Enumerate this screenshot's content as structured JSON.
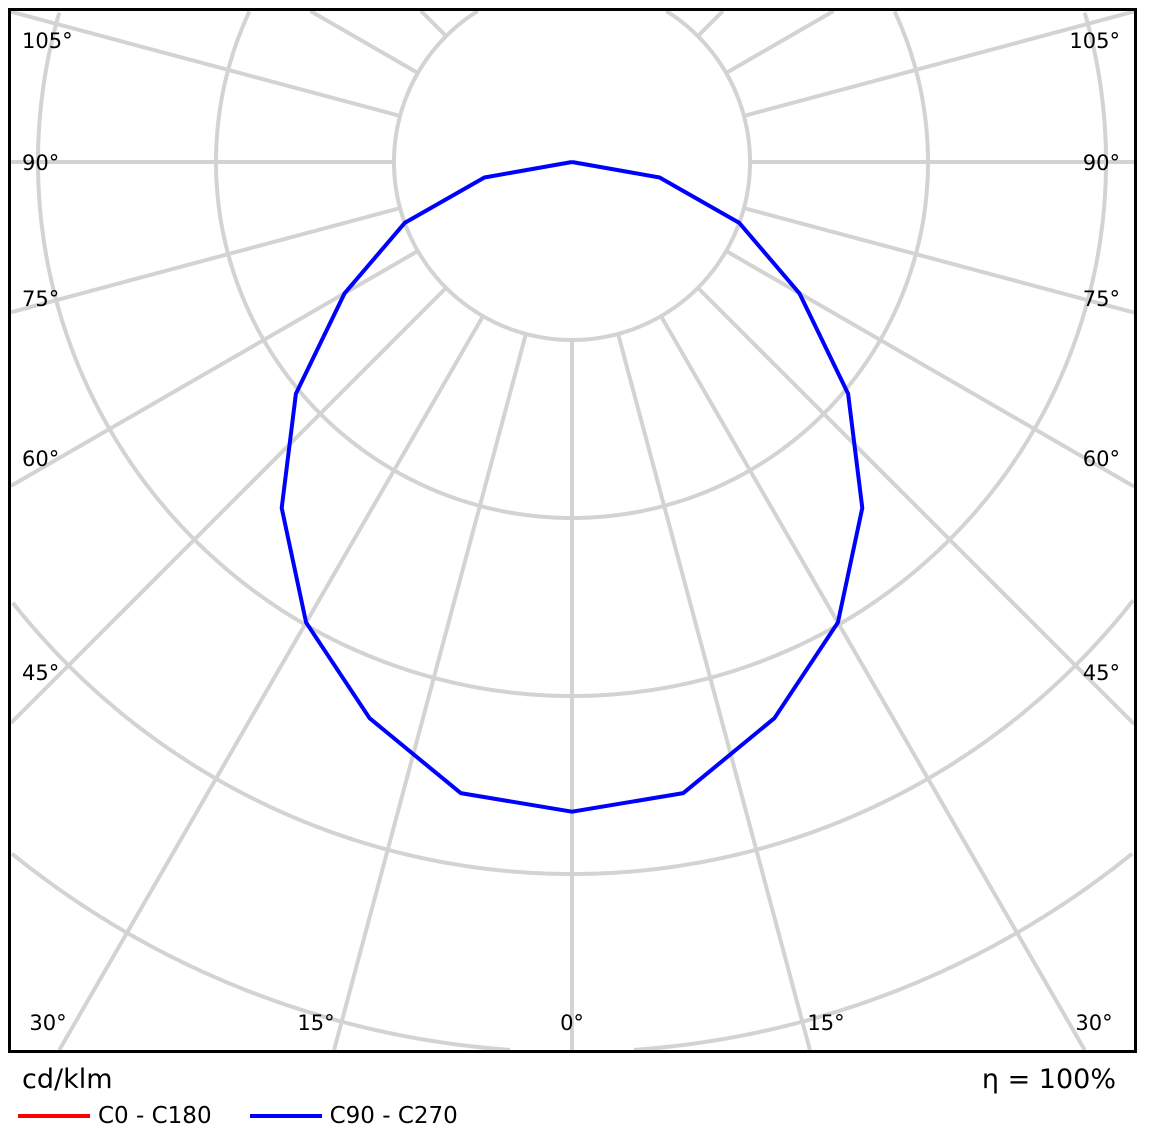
{
  "chart_data": {
    "type": "polar-line",
    "unit_label": "cd/klm",
    "efficiency_label": "η = 100%",
    "angle_labels_left": [
      "105°",
      "90°",
      "75°",
      "60°",
      "45°",
      "30°",
      "15°"
    ],
    "angle_labels_center": "0°",
    "angle_labels_right": [
      "105°",
      "90°",
      "75°",
      "60°",
      "45°",
      "30°",
      "15°"
    ],
    "angle_step_deg": 15,
    "ring_step": 80,
    "grid": true,
    "legend_placement": "bottom-left",
    "gamma_deg": [
      0,
      10,
      20,
      30,
      40,
      50,
      60,
      70,
      80,
      90
    ],
    "series": [
      {
        "name": "C0 - C180",
        "color": "#ff0000",
        "values": [
          292,
          288,
          266,
          239,
          203,
          162,
          118,
          80,
          40,
          0
        ]
      },
      {
        "name": "C90 - C270",
        "color": "#0000ff",
        "values": [
          292,
          288,
          266,
          239,
          203,
          162,
          118,
          80,
          40,
          0
        ]
      }
    ]
  }
}
